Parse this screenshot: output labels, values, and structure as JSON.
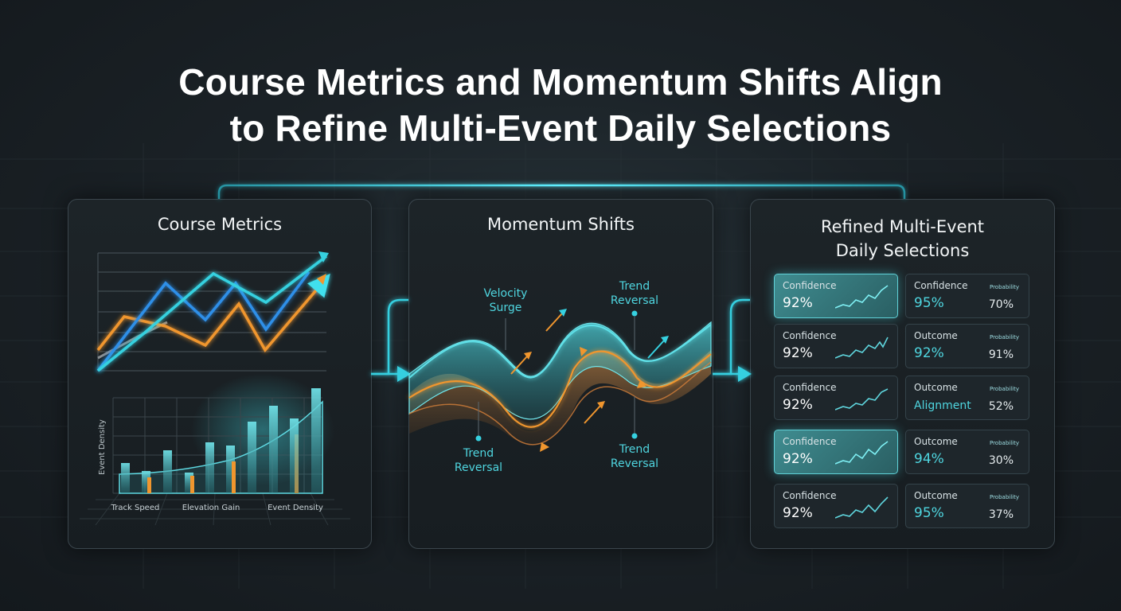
{
  "title": {
    "line1": "Course Metrics and Momentum Shifts Align",
    "line2": "to Refine Multi-Event Daily Selections"
  },
  "panels": {
    "course": {
      "title": "Course Metrics",
      "ylabel": "Event Density",
      "xlabels": [
        "Track Speed",
        "Elevation Gain",
        "Event Density"
      ]
    },
    "momentum": {
      "title": "Momentum Shifts",
      "annotations": {
        "velocity_surge": [
          "Velocity",
          "Surge"
        ],
        "trend_reversal_top": [
          "Trend",
          "Reversal"
        ],
        "trend_reversal_bottom_left": [
          "Trend",
          "Reversal"
        ],
        "trend_reversal_bottom_right": [
          "Trend",
          "Reversal"
        ]
      }
    },
    "selections": {
      "title_line1": "Refined Multi-Event",
      "title_line2": "Daily Selections",
      "left_cards": [
        {
          "label": "Confidence",
          "value": "92%",
          "highlight": true
        },
        {
          "label": "Confidence",
          "value": "92%",
          "highlight": false
        },
        {
          "label": "Confidence",
          "value": "92%",
          "highlight": false
        },
        {
          "label": "Confidence",
          "value": "92%",
          "highlight": true
        },
        {
          "label": "Confidence",
          "value": "92%",
          "highlight": false
        }
      ],
      "right_cards": [
        {
          "label": "Confidence",
          "value": "95%",
          "tag": "Probability",
          "side": "70%"
        },
        {
          "label": "Outcome",
          "value": "92%",
          "tag": "Probability",
          "side": "91%"
        },
        {
          "label": "Outcome",
          "value": "Alignment",
          "tag": "Probability",
          "side": "52%"
        },
        {
          "label": "Outcome",
          "value": "94%",
          "tag": "Probability",
          "side": "30%"
        },
        {
          "label": "Outcome",
          "value": "95%",
          "tag": "Probability",
          "side": "37%"
        }
      ]
    }
  },
  "colors": {
    "cyan": "#36d1e0",
    "blue": "#2f8fe8",
    "orange": "#f0962e",
    "teal_bar": "#5fc8cc"
  }
}
